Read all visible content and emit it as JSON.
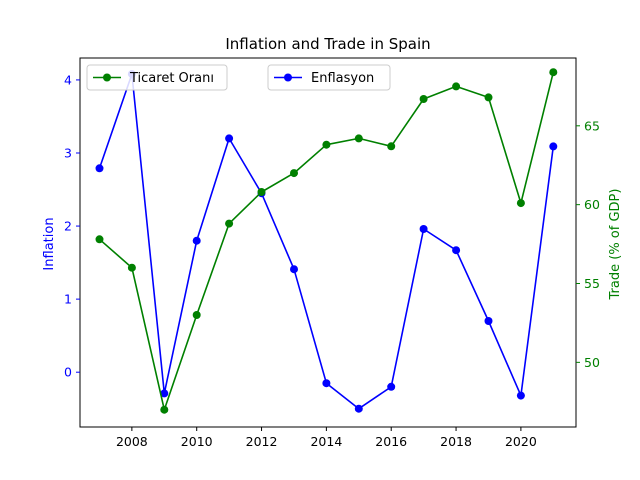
{
  "chart_data": {
    "type": "line",
    "title": "Inflation and Trade in Spain",
    "x": [
      2007,
      2008,
      2009,
      2010,
      2011,
      2012,
      2013,
      2014,
      2015,
      2016,
      2017,
      2018,
      2019,
      2020,
      2021
    ],
    "xlim": [
      2006.4,
      2021.7
    ],
    "xticks": [
      2008,
      2010,
      2012,
      2014,
      2016,
      2018,
      2020
    ],
    "xlabel": "",
    "left_axis": {
      "label": "Inflation",
      "color": "#0000ff",
      "ylim": [
        -0.75,
        4.3
      ],
      "ticks": [
        0,
        1,
        2,
        3,
        4
      ]
    },
    "right_axis": {
      "label": "Trade (% of GDP)",
      "color": "#008000",
      "ylim": [
        45.9,
        69.3
      ],
      "ticks": [
        50,
        55,
        60,
        65
      ]
    },
    "series": [
      {
        "name": "Enflasyon",
        "axis": "left",
        "color": "#0000ff",
        "values": [
          2.79,
          4.08,
          -0.29,
          1.8,
          3.2,
          2.45,
          1.41,
          -0.15,
          -0.5,
          -0.2,
          1.96,
          1.67,
          0.7,
          -0.32,
          3.09
        ]
      },
      {
        "name": "Ticaret Oranı",
        "axis": "right",
        "color": "#008000",
        "values": [
          57.8,
          56.0,
          47.0,
          53.0,
          58.8,
          60.8,
          62.0,
          63.8,
          64.2,
          63.7,
          66.7,
          67.5,
          66.8,
          60.1,
          68.4
        ]
      }
    ],
    "legends": [
      {
        "placement": "upper-left",
        "series": [
          "Ticaret Oranı"
        ]
      },
      {
        "placement": "upper-center",
        "series": [
          "Enflasyon"
        ]
      }
    ],
    "grid": false
  }
}
